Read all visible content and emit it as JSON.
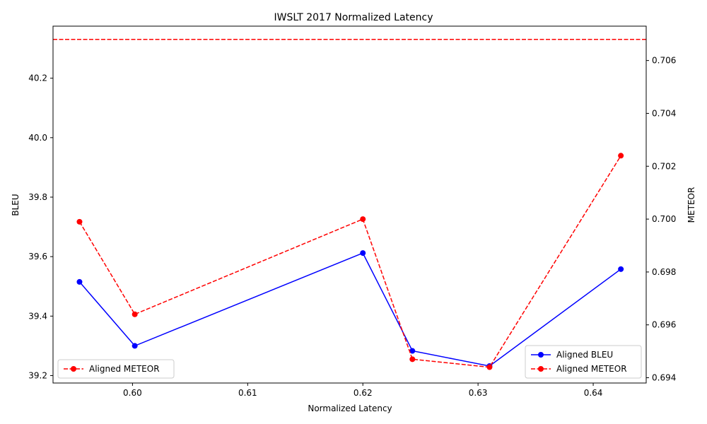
{
  "chart_data": {
    "type": "line",
    "title": "IWSLT 2017 Normalized Latency",
    "xlabel": "Normalized Latency",
    "ylabel_left": "BLEU",
    "ylabel_right": "METEOR",
    "xlim": [
      0.5931,
      0.6446
    ],
    "ylim_left": [
      39.175,
      40.375
    ],
    "ylim_right": [
      0.6938,
      0.7073
    ],
    "x_ticks": [
      0.6,
      0.61,
      0.62,
      0.63,
      0.64
    ],
    "x_tick_labels": [
      "0.60",
      "0.61",
      "0.62",
      "0.63",
      "0.64"
    ],
    "y_left_ticks": [
      39.2,
      39.4,
      39.6,
      39.8,
      40.0,
      40.2
    ],
    "y_left_tick_labels": [
      "39.2",
      "39.4",
      "39.6",
      "39.8",
      "40.0",
      "40.2"
    ],
    "y_right_ticks": [
      0.694,
      0.696,
      0.698,
      0.7,
      0.702,
      0.704,
      0.706
    ],
    "y_right_tick_labels": [
      "0.694",
      "0.696",
      "0.698",
      "0.700",
      "0.702",
      "0.704",
      "0.706"
    ],
    "grid": false,
    "x": [
      0.5954,
      0.6002,
      0.62,
      0.6243,
      0.631,
      0.6424
    ],
    "series": [
      {
        "name": "Aligned BLEU",
        "axis": "left",
        "color": "#0000ff",
        "linestyle": "solid",
        "marker": "circle",
        "values": [
          39.515,
          39.3,
          39.612,
          39.283,
          39.232,
          39.558
        ]
      },
      {
        "name": "Aligned METEOR",
        "axis": "right",
        "color": "#ff0000",
        "linestyle": "dashed",
        "marker": "circle",
        "values": [
          0.6999,
          0.6964,
          0.7,
          0.6947,
          0.6944,
          0.7024
        ]
      }
    ],
    "reference_line": {
      "axis": "right",
      "value": 0.7068,
      "color": "#ff0000",
      "linestyle": "dashed"
    },
    "legends": [
      {
        "placement": "lower-left",
        "entries": [
          "Aligned METEOR"
        ]
      },
      {
        "placement": "lower-right",
        "entries": [
          "Aligned BLEU",
          "Aligned METEOR"
        ]
      }
    ]
  }
}
